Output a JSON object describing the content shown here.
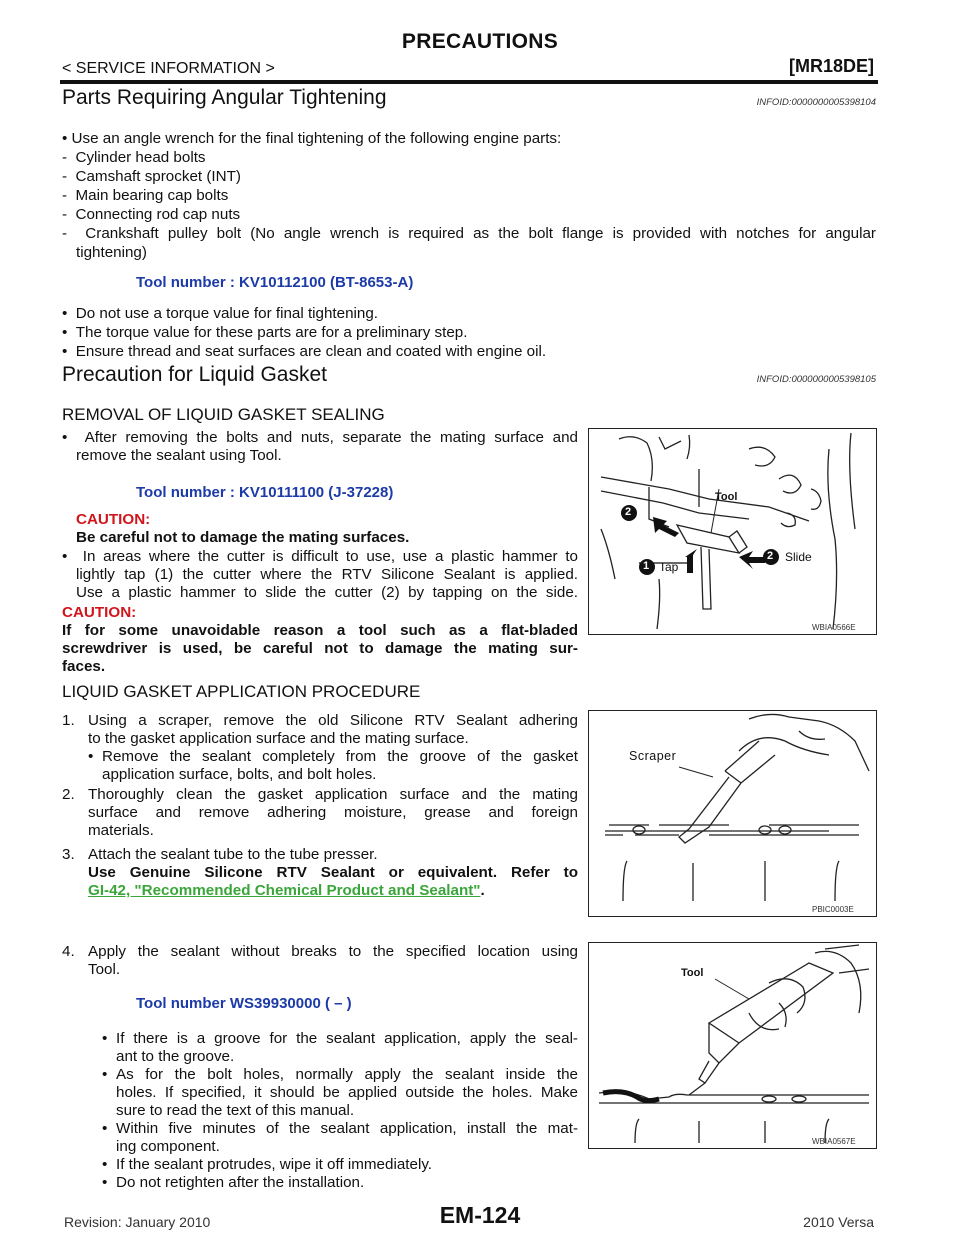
{
  "header": {
    "title": "PRECAUTIONS",
    "section": "< SERVICE INFORMATION >",
    "engine": "[MR18DE]"
  },
  "s1": {
    "title": "Parts Requiring Angular Tightening",
    "infoid": "INFOID:0000000005398104",
    "intro": "Use an angle wrench for the final tightening of the following engine parts:",
    "parts": [
      "Cylinder head bolts",
      "Camshaft sprocket (INT)",
      "Main bearing cap bolts",
      "Connecting rod cap nuts",
      "Crankshaft pulley bolt (No angle wrench is required as the bolt flange is provided with notches for angular",
      "tightening)"
    ],
    "tool": "Tool number       : KV10112100 (BT-8653-A)",
    "notes": [
      "Do not use a torque value for final tightening.",
      "The torque value for these parts are for a preliminary step.",
      "Ensure thread and seat surfaces are clean and coated with engine oil."
    ]
  },
  "s2": {
    "title": "Precaution for Liquid Gasket",
    "infoid": "INFOID:0000000005398105",
    "removal": {
      "title": "REMOVAL OF LIQUID GASKET SEALING",
      "b1": [
        "After removing the bolts and nuts, separate the mating surface and",
        "remove the sealant using Tool."
      ],
      "tool": "Tool number      : KV10111100 (J-37228)",
      "caution1_label": "CAUTION:",
      "caution1_text": "Be careful not to damage the mating surfaces.",
      "b2": [
        "In areas where the cutter is difficult to use, use a plastic hammer to",
        "lightly tap (1) the cutter where the RTV Silicone Sealant is applied.",
        "Use a plastic hammer to slide the cutter (2) by tapping on the side."
      ],
      "caution2_label": "CAUTION:",
      "caution2_lines": [
        "If for some unavoidable reason a tool such as a flat-bladed",
        "screwdriver is used, be careful not to damage the mating sur-",
        "faces."
      ],
      "fig": {
        "code": "WBIA0566E",
        "tool": "Tool",
        "slide": "Slide",
        "tap": "Tap",
        "n1": "1",
        "n2": "2"
      }
    },
    "application": {
      "title": "LIQUID GASKET APPLICATION PROCEDURE",
      "step1": [
        "1.",
        "Using a scraper, remove the old Silicone RTV Sealant adhering",
        "to the gasket application surface and the mating surface."
      ],
      "step1_sub": [
        "Remove the sealant completely from the groove of the gasket",
        "application surface, bolts, and bolt holes."
      ],
      "step2": [
        "2.",
        "Thoroughly clean the gasket application surface and the mating",
        "surface and remove adhering moisture, grease and foreign",
        "materials."
      ],
      "step3": [
        "3.",
        "Attach the sealant tube to the tube presser."
      ],
      "step3_bold": "Use Genuine Silicone RTV Sealant or equivalent. Refer to",
      "step3_link": "GI-42, \"Recommended Chemical Product and Sealant\"",
      "step3_end": ".",
      "fig2": {
        "code": "PBIC0003E",
        "scraper": "Scraper"
      },
      "step4": [
        "4.",
        "Apply the sealant without breaks to the specified location using",
        "Tool."
      ],
      "tool": "Tool number     WS39930000 (    –    )",
      "subs": [
        [
          "If there is a groove for the sealant application, apply the seal-",
          "ant to the groove."
        ],
        [
          "As for the bolt holes, normally apply the sealant inside the",
          "holes. If specified, it should be applied outside the holes. Make",
          "sure to read the text of this manual."
        ],
        [
          "Within five minutes of the sealant application, install the mat-",
          "ing component."
        ],
        [
          "If the sealant protrudes, wipe it off immediately."
        ],
        [
          "Do not retighten after the installation."
        ]
      ],
      "fig3": {
        "code": "WBIA0567E",
        "tool": "Tool"
      }
    }
  },
  "footer": {
    "revision": "Revision: January 2010",
    "page": "EM-124",
    "model": "2010 Versa"
  }
}
